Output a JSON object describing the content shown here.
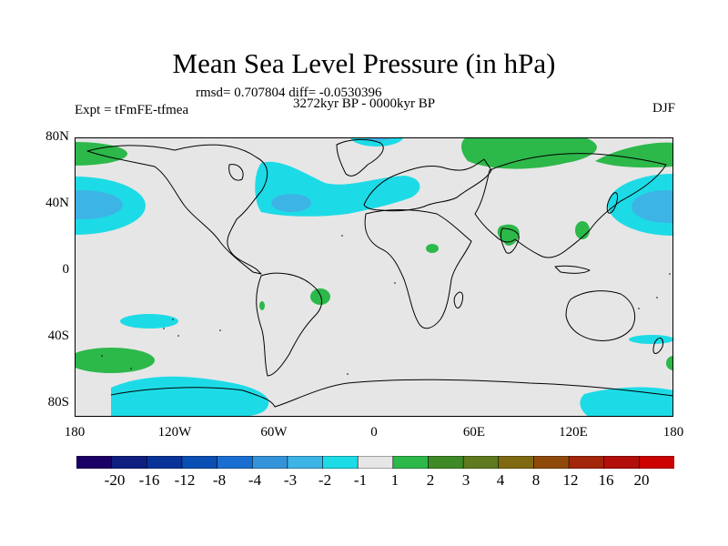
{
  "title": "Mean Sea Level Pressure (in hPa)",
  "stats_line": "rmsd= 0.707804 diff= -0.0530396",
  "experiment": "Expt = tFmFE-tfmea",
  "period": "3272kyr BP - 0000kyr BP",
  "season": "DJF",
  "lat_labels": [
    "80N",
    "40N",
    "0",
    "40S",
    "80S"
  ],
  "lon_labels": [
    "180",
    "120W",
    "60W",
    "0",
    "60E",
    "120E",
    "180"
  ],
  "colorbar": {
    "labels": [
      "-20",
      "-16",
      "-12",
      "-8",
      "-4",
      "-3",
      "-2",
      "-1",
      "1",
      "2",
      "3",
      "4",
      "8",
      "12",
      "16",
      "20"
    ],
    "colors": [
      "#1a0066",
      "#0f1f80",
      "#0a3399",
      "#0a4fb3",
      "#1a6ed1",
      "#3594d9",
      "#3db4e6",
      "#1ddbe6",
      "#e6e6e6",
      "#2db84a",
      "#3d8a26",
      "#5f7a1f",
      "#7f6a12",
      "#8f4a0a",
      "#a3260a",
      "#b30f0a",
      "#cc0000"
    ]
  },
  "colors": {
    "ocean_background": "#e6e6e6",
    "positive_small": "#2db84a",
    "negative_small": "#1ddbe6",
    "negative_medium": "#3db4e6"
  }
}
